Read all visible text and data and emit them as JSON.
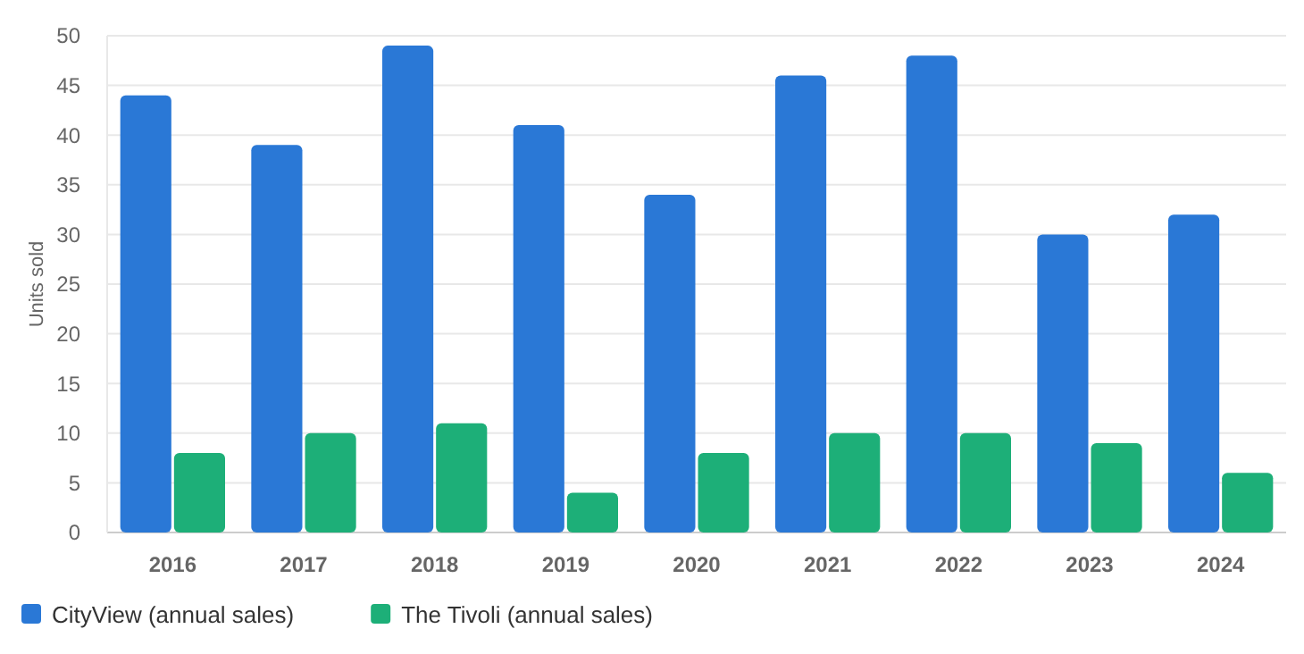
{
  "chart_data": {
    "type": "bar",
    "ylabel": "Units sold",
    "categories": [
      "2016",
      "2017",
      "2018",
      "2019",
      "2020",
      "2021",
      "2022",
      "2023",
      "2024"
    ],
    "series": [
      {
        "name": "CityView (annual sales)",
        "color": "#2a78d6",
        "values": [
          44,
          39,
          49,
          41,
          34,
          46,
          48,
          30,
          32
        ]
      },
      {
        "name": "The Tivoli (annual sales)",
        "color": "#1daf78",
        "values": [
          8,
          10,
          11,
          4,
          8,
          10,
          10,
          9,
          6
        ]
      }
    ],
    "ylim": [
      0,
      50
    ],
    "yticks": [
      0,
      5,
      10,
      15,
      20,
      25,
      30,
      35,
      40,
      45,
      50
    ],
    "grid": "y",
    "legend": "bottom left"
  }
}
